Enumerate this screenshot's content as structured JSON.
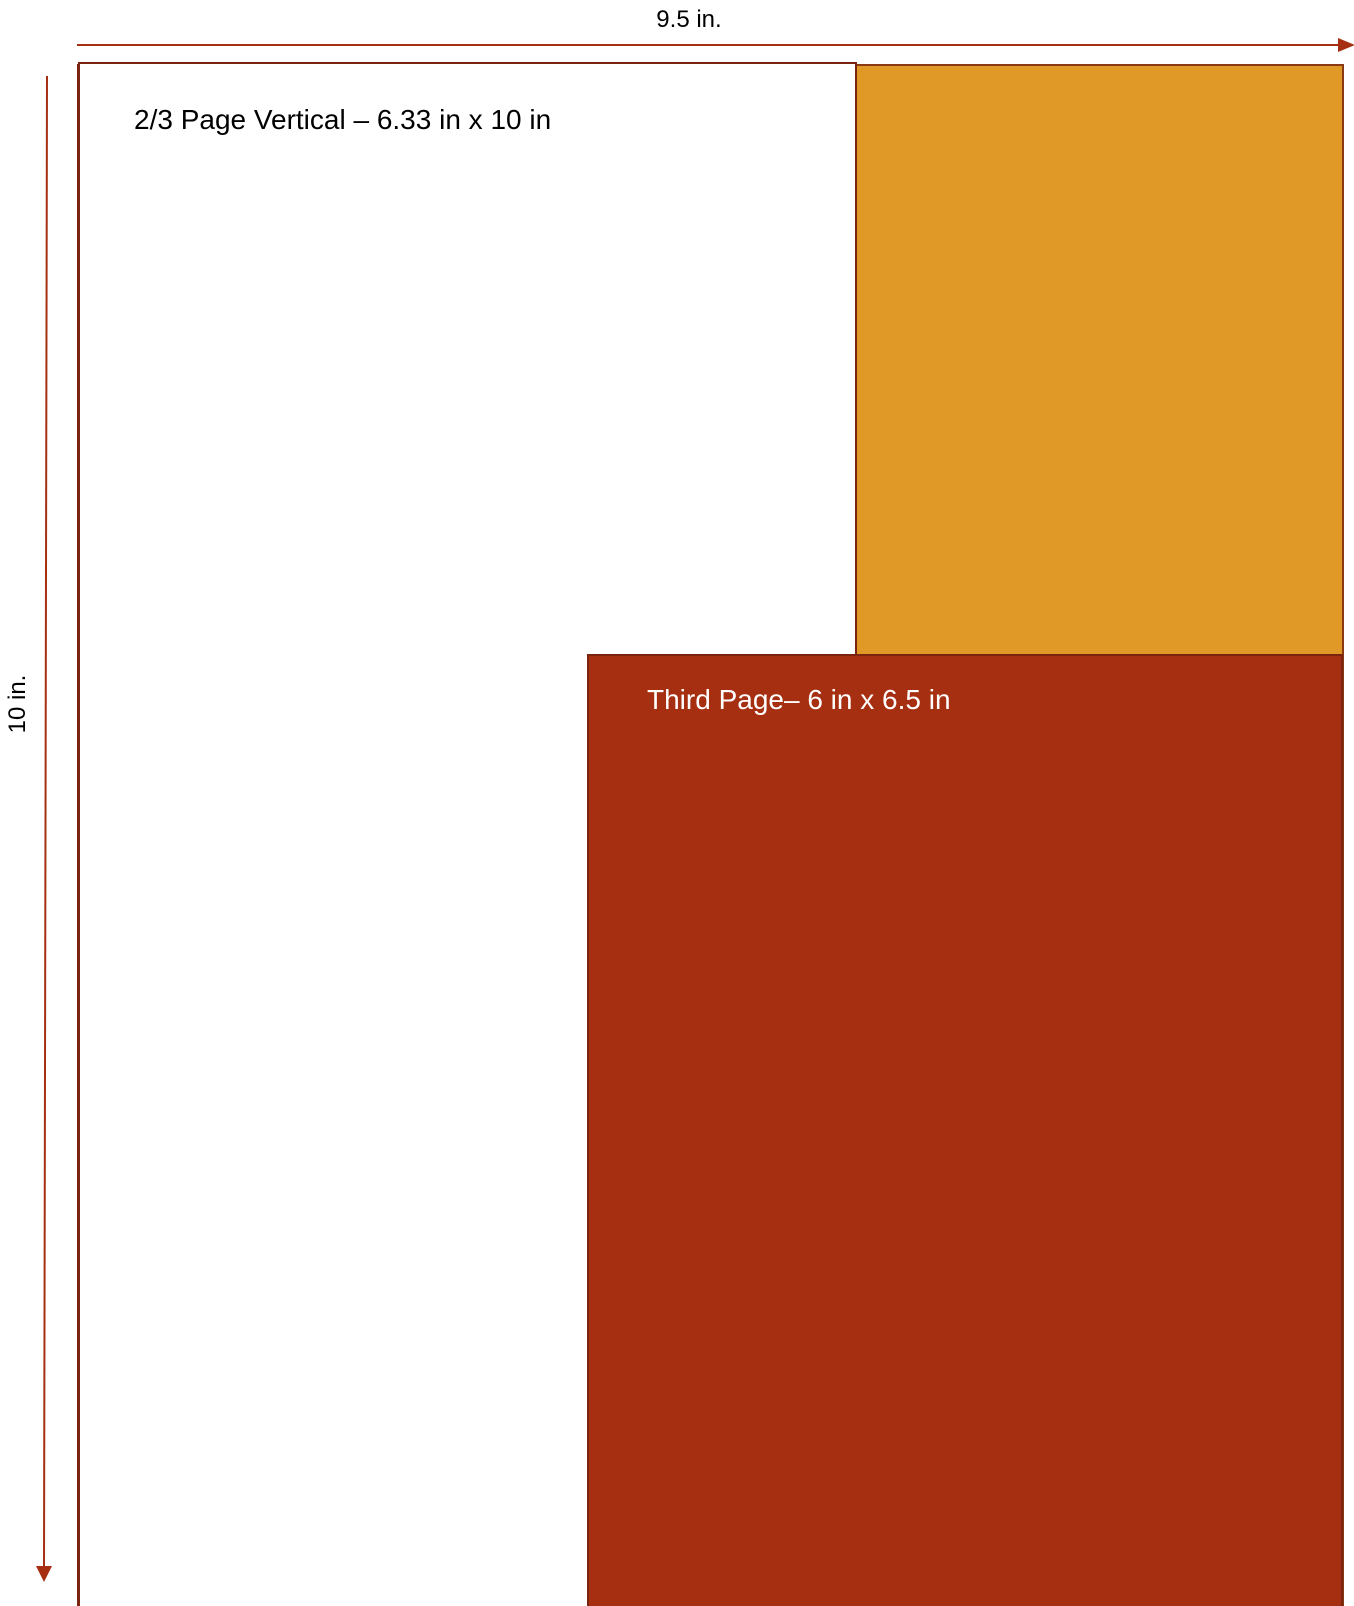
{
  "dimensions": {
    "width_label": "9.5 in.",
    "height_label": "10 in."
  },
  "ad_sizes": {
    "two_thirds": {
      "label": "2/3 Page Vertical – 6.33 in x 10 in"
    },
    "third_page": {
      "label": "Third Page– 6 in x 6.5 in"
    }
  },
  "colors": {
    "accent_orange": "#e09826",
    "accent_red": "#a52f10",
    "outline": "#7a2410",
    "arrow": "#a52f10"
  }
}
